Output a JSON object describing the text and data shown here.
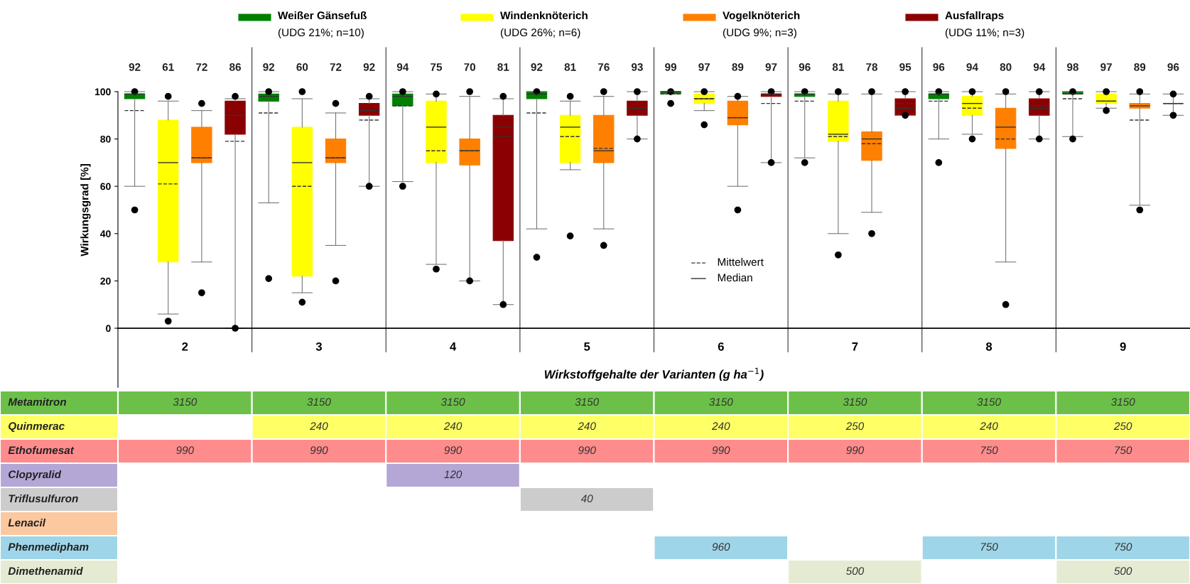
{
  "chart_data": [
    {
      "type": "box",
      "categories": [
        "2",
        "3",
        "4",
        "5",
        "6",
        "7",
        "8",
        "9"
      ],
      "ylabel": "Wirkungsgrad [%]",
      "ylim": [
        0,
        100
      ],
      "yticks": [
        0,
        20,
        40,
        60,
        80,
        100
      ],
      "grid": false,
      "legend": "top",
      "marker": "circle",
      "annotations": [
        "Mittelwert",
        "Median"
      ],
      "series": [
        {
          "name": "Weißer Gänsefuß\n(UDG 21%; n=10)",
          "color": "#008000",
          "value_labels": [
            "92",
            "92",
            "94",
            "92",
            "99",
            "96",
            "96",
            "98"
          ],
          "boxes": [
            {
              "low": 60,
              "q1": 97,
              "median": 99,
              "q3": 99,
              "high": 100,
              "mean": 92,
              "outliers": [
                50,
                100
              ]
            },
            {
              "low": 53,
              "q1": 96,
              "median": 98,
              "q3": 99,
              "high": 100,
              "mean": 91,
              "outliers": [
                21,
                100
              ]
            },
            {
              "low": 62,
              "q1": 94,
              "median": 98,
              "q3": 99,
              "high": 100,
              "mean": 94,
              "outliers": [
                60,
                100
              ]
            },
            {
              "low": 42,
              "q1": 97,
              "median": 99,
              "q3": 100,
              "high": 100,
              "mean": 91,
              "outliers": [
                30,
                100
              ]
            },
            {
              "low": 99,
              "q1": 99,
              "median": 100,
              "q3": 100,
              "high": 100,
              "mean": 99,
              "outliers": [
                95,
                100
              ]
            },
            {
              "low": 72,
              "q1": 98,
              "median": 99,
              "q3": 99,
              "high": 100,
              "mean": 96,
              "outliers": [
                70,
                100
              ]
            },
            {
              "low": 80,
              "q1": 97,
              "median": 99,
              "q3": 99,
              "high": 100,
              "mean": 96,
              "outliers": [
                70,
                100
              ]
            },
            {
              "low": 81,
              "q1": 99,
              "median": 99,
              "q3": 100,
              "high": 100,
              "mean": 97,
              "outliers": [
                80,
                100
              ]
            }
          ]
        },
        {
          "name": "Windenknöterich\n(UDG 26%; n=6)",
          "color": "#ffff00",
          "value_labels": [
            "61",
            "60",
            "75",
            "81",
            "97",
            "81",
            "94",
            "97"
          ],
          "boxes": [
            {
              "low": 6,
              "q1": 28,
              "median": 70,
              "q3": 88,
              "high": 96,
              "mean": 61,
              "outliers": [
                3,
                98
              ]
            },
            {
              "low": 15,
              "q1": 22,
              "median": 70,
              "q3": 85,
              "high": 97,
              "mean": 60,
              "outliers": [
                11,
                100
              ]
            },
            {
              "low": 27,
              "q1": 70,
              "median": 85,
              "q3": 96,
              "high": 99,
              "mean": 75,
              "outliers": [
                25,
                99
              ]
            },
            {
              "low": 67,
              "q1": 70,
              "median": 85,
              "q3": 90,
              "high": 96,
              "mean": 81,
              "outliers": [
                39,
                98
              ]
            },
            {
              "low": 92,
              "q1": 95,
              "median": 97,
              "q3": 99,
              "high": 100,
              "mean": 97,
              "outliers": [
                86,
                100
              ]
            },
            {
              "low": 40,
              "q1": 79,
              "median": 82,
              "q3": 96,
              "high": 99,
              "mean": 81,
              "outliers": [
                31,
                100
              ]
            },
            {
              "low": 82,
              "q1": 90,
              "median": 95,
              "q3": 98,
              "high": 100,
              "mean": 93,
              "outliers": [
                80,
                100
              ]
            },
            {
              "low": 93,
              "q1": 95,
              "median": 96,
              "q3": 99,
              "high": 100,
              "mean": 96,
              "outliers": [
                92,
                100
              ]
            }
          ]
        },
        {
          "name": "Vogelknöterich\n(UDG 9%; n=3)",
          "color": "#ff8000",
          "value_labels": [
            "72",
            "72",
            "70",
            "76",
            "89",
            "78",
            "80",
            "89"
          ],
          "boxes": [
            {
              "low": 28,
              "q1": 70,
              "median": 72,
              "q3": 85,
              "high": 92,
              "mean": 72,
              "outliers": [
                15,
                95
              ]
            },
            {
              "low": 35,
              "q1": 70,
              "median": 72,
              "q3": 80,
              "high": 91,
              "mean": 72,
              "outliers": [
                20,
                95
              ]
            },
            {
              "low": 20,
              "q1": 69,
              "median": 75,
              "q3": 80,
              "high": 98,
              "mean": 75,
              "outliers": [
                20,
                100
              ]
            },
            {
              "low": 42,
              "q1": 70,
              "median": 75,
              "q3": 90,
              "high": 98,
              "mean": 76,
              "outliers": [
                35,
                100
              ]
            },
            {
              "low": 60,
              "q1": 86,
              "median": 89,
              "q3": 96,
              "high": 98,
              "mean": 89,
              "outliers": [
                50,
                98
              ]
            },
            {
              "low": 49,
              "q1": 71,
              "median": 80,
              "q3": 83,
              "high": 99,
              "mean": 78,
              "outliers": [
                40,
                100
              ]
            },
            {
              "low": 28,
              "q1": 76,
              "median": 85,
              "q3": 93,
              "high": 99,
              "mean": 80,
              "outliers": [
                10,
                100
              ]
            },
            {
              "low": 52,
              "q1": 93,
              "median": 94,
              "q3": 95,
              "high": 99,
              "mean": 88,
              "outliers": [
                50,
                100
              ]
            }
          ]
        },
        {
          "name": "Ausfallraps\n(UDG 11%; n=3)",
          "color": "#8b0000",
          "value_labels": [
            "86",
            "92",
            "81",
            "93",
            "97",
            "95",
            "94",
            "96"
          ],
          "boxes": [
            {
              "low": 0,
              "q1": 82,
              "median": 90,
              "q3": 96,
              "high": 97,
              "mean": 79,
              "outliers": [
                0,
                98
              ]
            },
            {
              "low": 60,
              "q1": 90,
              "median": 92,
              "q3": 95,
              "high": 97,
              "mean": 88,
              "outliers": [
                60,
                98
              ]
            },
            {
              "low": 10,
              "q1": 37,
              "median": 85,
              "q3": 90,
              "high": 97,
              "mean": 81,
              "outliers": [
                10,
                98
              ]
            },
            {
              "low": 80,
              "q1": 90,
              "median": 93,
              "q3": 96,
              "high": 100,
              "mean": 93,
              "outliers": [
                80,
                100
              ]
            },
            {
              "low": 70,
              "q1": 98,
              "median": 99,
              "q3": 99,
              "high": 100,
              "mean": 95,
              "outliers": [
                70,
                100
              ]
            },
            {
              "low": 90,
              "q1": 90,
              "median": 93,
              "q3": 97,
              "high": 100,
              "mean": 95,
              "outliers": [
                90,
                100
              ]
            },
            {
              "low": 80,
              "q1": 90,
              "median": 93,
              "q3": 97,
              "high": 100,
              "mean": 94,
              "outliers": [
                80,
                100
              ]
            },
            {
              "low": 90,
              "q1": 95,
              "median": 95,
              "q3": 95,
              "high": 99,
              "mean": 95,
              "outliers": [
                90,
                99
              ]
            }
          ]
        }
      ]
    },
    {
      "type": "heatmap",
      "title": "Wirkstoffgehalte der Varianten (g ha$^{−1}$)",
      "categories": [
        null,
        null,
        null,
        null,
        null,
        null,
        null,
        null
      ],
      "tick_labels": "y",
      "data_labels": true,
      "y_categories": [
        "Metamitron",
        "Quinmerac",
        "Ethofumesat",
        "Clopyralid",
        "Triflusulfuron",
        "Lenacil",
        "Phenmedipham",
        "Dimethenamid"
      ],
      "colors": [
        "#6cc04a",
        "#ffff66",
        "#ff8c8c",
        "#b4a7d6",
        "#cccccc",
        "#fbc8a0",
        "#9fd5e8",
        "#e4ebd2"
      ],
      "cells": [
        [
          3150,
          3150,
          3150,
          3150,
          3150,
          3150,
          3150,
          3150
        ],
        [
          null,
          240,
          240,
          240,
          240,
          250,
          240,
          250
        ],
        [
          990,
          990,
          990,
          990,
          990,
          990,
          750,
          750
        ],
        [
          null,
          null,
          120,
          null,
          null,
          null,
          null,
          null
        ],
        [
          null,
          null,
          null,
          40,
          null,
          null,
          null,
          null
        ],
        [
          null,
          null,
          null,
          null,
          null,
          null,
          null,
          null
        ],
        [
          null,
          null,
          null,
          null,
          960,
          null,
          750,
          750
        ],
        [
          null,
          null,
          null,
          null,
          null,
          500,
          null,
          500
        ]
      ]
    }
  ]
}
